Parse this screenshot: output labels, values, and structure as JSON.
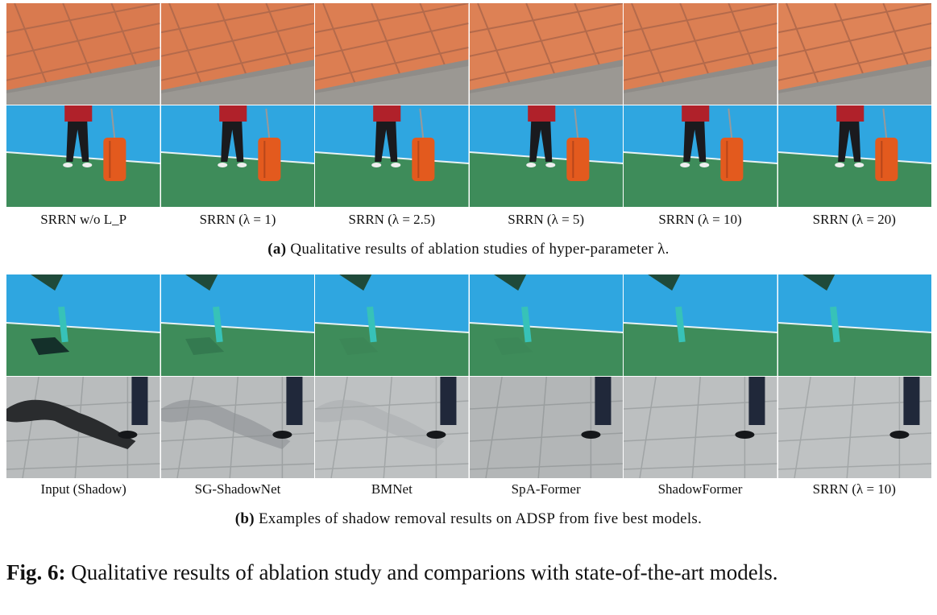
{
  "panel_a": {
    "labels": [
      "SRRN w/o L_P",
      "SRRN (λ = 1)",
      "SRRN (λ = 2.5)",
      "SRRN (λ = 5)",
      "SRRN (λ = 10)",
      "SRRN (λ = 20)"
    ],
    "caption_tag": "(a)",
    "caption_text": "Qualitative results of ablation studies of hyper-parameter λ."
  },
  "panel_b": {
    "labels": [
      "Input (Shadow)",
      "SG-ShadowNet",
      "BMNet",
      "SpA-Former",
      "ShadowFormer",
      "SRRN (λ = 10)"
    ],
    "caption_tag": "(b)",
    "caption_text": "Examples of shadow removal results on ADSP from five best models."
  },
  "figure": {
    "tag": "Fig. 6:",
    "caption": "Qualitative results of ablation study and comparions with state-of-the-art models."
  },
  "colors": {
    "tile_orange": "#d97a4f",
    "court_blue": "#2fa6e0",
    "court_green": "#3e8c5a",
    "pavement_gray": "#b9bcbd",
    "suitcase_orange": "#e35a1e",
    "shirt_red": "#b0212a"
  }
}
